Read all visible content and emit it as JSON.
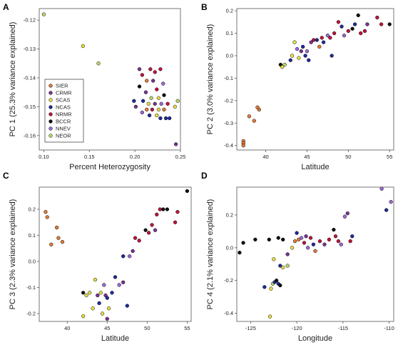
{
  "colors": {
    "SIER": "#e07b39",
    "CRMR": "#7b3294",
    "SCAS": "#e8dc4a",
    "NCAS": "#1f2a9c",
    "NRMR": "#c0143c",
    "BCCR": "#111111",
    "NNEV": "#9b6bd6",
    "NEOR": "#b7d96a"
  },
  "legend": [
    "SIER",
    "CRMR",
    "SCAS",
    "NCAS",
    "NRMR",
    "BCCR",
    "NNEV",
    "NEOR"
  ],
  "chart_data": [
    {
      "panel": "A",
      "type": "scatter",
      "xlabel": "Percent Heterozygosity",
      "ylabel": "PC 1 (25.3% variance explained)",
      "xlim": [
        0.095,
        0.25
      ],
      "ylim": [
        -0.165,
        -0.116
      ],
      "xticks": [
        0.1,
        0.15,
        0.2,
        0.25
      ],
      "xtick_labels": [
        "0.10",
        "0.15",
        "0.20",
        "0.25"
      ],
      "yticks": [
        -0.12,
        -0.13,
        -0.14,
        -0.15,
        -0.16
      ],
      "ytick_labels": [
        "-0.12",
        "-0.13",
        "-0.14",
        "-0.15",
        "-0.16"
      ],
      "legend_position": "bottom-left",
      "points": [
        {
          "x": 0.1,
          "y": -0.118,
          "g": "NEOR"
        },
        {
          "x": 0.143,
          "y": -0.129,
          "g": "SCAS"
        },
        {
          "x": 0.16,
          "y": -0.135,
          "g": "NEOR"
        },
        {
          "x": 0.205,
          "y": -0.137,
          "g": "CRMR"
        },
        {
          "x": 0.208,
          "y": -0.139,
          "g": "NRMR"
        },
        {
          "x": 0.217,
          "y": -0.137,
          "g": "NRMR"
        },
        {
          "x": 0.222,
          "y": -0.138,
          "g": "NRMR"
        },
        {
          "x": 0.228,
          "y": -0.137,
          "g": "NRMR"
        },
        {
          "x": 0.213,
          "y": -0.141,
          "g": "SIER"
        },
        {
          "x": 0.22,
          "y": -0.141,
          "g": "CRMR"
        },
        {
          "x": 0.231,
          "y": -0.142,
          "g": "NNEV"
        },
        {
          "x": 0.205,
          "y": -0.143,
          "g": "BCCR"
        },
        {
          "x": 0.224,
          "y": -0.144,
          "g": "NRMR"
        },
        {
          "x": 0.212,
          "y": -0.145,
          "g": "CRMR"
        },
        {
          "x": 0.232,
          "y": -0.146,
          "g": "BCCR"
        },
        {
          "x": 0.218,
          "y": -0.147,
          "g": "NEOR"
        },
        {
          "x": 0.226,
          "y": -0.147,
          "g": "SCAS"
        },
        {
          "x": 0.199,
          "y": -0.148,
          "g": "NCAS"
        },
        {
          "x": 0.209,
          "y": -0.148,
          "g": "NCAS"
        },
        {
          "x": 0.215,
          "y": -0.149,
          "g": "SCAS"
        },
        {
          "x": 0.222,
          "y": -0.149,
          "g": "CRMR"
        },
        {
          "x": 0.229,
          "y": -0.149,
          "g": "NNEV"
        },
        {
          "x": 0.236,
          "y": -0.149,
          "g": "NRMR"
        },
        {
          "x": 0.247,
          "y": -0.148,
          "g": "NEOR"
        },
        {
          "x": 0.244,
          "y": -0.15,
          "g": "SCAS"
        },
        {
          "x": 0.201,
          "y": -0.15,
          "g": "CRMR"
        },
        {
          "x": 0.213,
          "y": -0.151,
          "g": "SIER"
        },
        {
          "x": 0.219,
          "y": -0.151,
          "g": "NRMR"
        },
        {
          "x": 0.226,
          "y": -0.151,
          "g": "SCAS"
        },
        {
          "x": 0.232,
          "y": -0.151,
          "g": "SIER"
        },
        {
          "x": 0.208,
          "y": -0.152,
          "g": "NNEV"
        },
        {
          "x": 0.216,
          "y": -0.153,
          "g": "NCAS"
        },
        {
          "x": 0.224,
          "y": -0.153,
          "g": "SCAS"
        },
        {
          "x": 0.228,
          "y": -0.154,
          "g": "NCAS"
        },
        {
          "x": 0.234,
          "y": -0.154,
          "g": "NCAS"
        },
        {
          "x": 0.238,
          "y": -0.154,
          "g": "NCAS"
        },
        {
          "x": 0.245,
          "y": -0.163,
          "g": "CRMR"
        }
      ]
    },
    {
      "panel": "B",
      "type": "scatter",
      "xlabel": "Latitude",
      "ylabel": "PC 2 (3.0% variance explained)",
      "xlim": [
        36.5,
        55.5
      ],
      "ylim": [
        -0.42,
        0.21
      ],
      "xticks": [
        40,
        45,
        50,
        55
      ],
      "xtick_labels": [
        "40",
        "45",
        "50",
        "55"
      ],
      "yticks": [
        -0.4,
        -0.3,
        -0.2,
        -0.1,
        0.0,
        0.1,
        0.2
      ],
      "ytick_labels": [
        "-0.4",
        "-0.3",
        "-0.2",
        "-0.1",
        "0.0",
        "0.1",
        "0.2"
      ],
      "points": [
        {
          "x": 37.3,
          "y": -0.38,
          "g": "SIER"
        },
        {
          "x": 37.3,
          "y": -0.39,
          "g": "SIER"
        },
        {
          "x": 37.3,
          "y": -0.4,
          "g": "SIER"
        },
        {
          "x": 38.0,
          "y": -0.27,
          "g": "SIER"
        },
        {
          "x": 38.6,
          "y": -0.29,
          "g": "SIER"
        },
        {
          "x": 39.2,
          "y": -0.24,
          "g": "SIER"
        },
        {
          "x": 39.0,
          "y": -0.23,
          "g": "SIER"
        },
        {
          "x": 41.8,
          "y": -0.04,
          "g": "BCCR"
        },
        {
          "x": 42.0,
          "y": -0.05,
          "g": "SCAS"
        },
        {
          "x": 42.3,
          "y": -0.04,
          "g": "NEOR"
        },
        {
          "x": 43.0,
          "y": -0.02,
          "g": "NCAS"
        },
        {
          "x": 43.2,
          "y": 0.0,
          "g": "SCAS"
        },
        {
          "x": 43.5,
          "y": 0.06,
          "g": "SCAS"
        },
        {
          "x": 43.8,
          "y": 0.03,
          "g": "NNEV"
        },
        {
          "x": 44.0,
          "y": -0.01,
          "g": "SCAS"
        },
        {
          "x": 44.3,
          "y": 0.02,
          "g": "CRMR"
        },
        {
          "x": 44.5,
          "y": 0.04,
          "g": "NCAS"
        },
        {
          "x": 44.8,
          "y": 0.0,
          "g": "NCAS"
        },
        {
          "x": 45.0,
          "y": 0.02,
          "g": "NNEV"
        },
        {
          "x": 45.2,
          "y": -0.02,
          "g": "NCAS"
        },
        {
          "x": 45.5,
          "y": 0.06,
          "g": "CRMR"
        },
        {
          "x": 45.8,
          "y": 0.07,
          "g": "NRMR"
        },
        {
          "x": 46.2,
          "y": 0.07,
          "g": "NCAS"
        },
        {
          "x": 46.5,
          "y": 0.04,
          "g": "SIER"
        },
        {
          "x": 46.8,
          "y": 0.08,
          "g": "NRMR"
        },
        {
          "x": 47.0,
          "y": 0.06,
          "g": "NCAS"
        },
        {
          "x": 47.5,
          "y": 0.09,
          "g": "NNEV"
        },
        {
          "x": 47.8,
          "y": 0.08,
          "g": "NRMR"
        },
        {
          "x": 48.0,
          "y": 0.0,
          "g": "NCAS"
        },
        {
          "x": 48.3,
          "y": 0.1,
          "g": "NRMR"
        },
        {
          "x": 48.8,
          "y": 0.15,
          "g": "NRMR"
        },
        {
          "x": 49.2,
          "y": 0.13,
          "g": "NCAS"
        },
        {
          "x": 49.5,
          "y": 0.09,
          "g": "NNEV"
        },
        {
          "x": 50.0,
          "y": 0.11,
          "g": "NRMR"
        },
        {
          "x": 50.5,
          "y": 0.12,
          "g": "BCCR"
        },
        {
          "x": 50.8,
          "y": 0.14,
          "g": "NCAS"
        },
        {
          "x": 51.2,
          "y": 0.18,
          "g": "BCCR"
        },
        {
          "x": 51.5,
          "y": 0.1,
          "g": "NRMR"
        },
        {
          "x": 52.0,
          "y": 0.11,
          "g": "NRMR"
        },
        {
          "x": 52.3,
          "y": 0.14,
          "g": "CRMR"
        },
        {
          "x": 53.5,
          "y": 0.17,
          "g": "NRMR"
        },
        {
          "x": 54.0,
          "y": 0.14,
          "g": "NRMR"
        },
        {
          "x": 55.0,
          "y": 0.14,
          "g": "BCCR"
        }
      ]
    },
    {
      "panel": "C",
      "type": "scatter",
      "xlabel": "Latitude",
      "ylabel": "PC 3 (2.3% variance explained)",
      "xlim": [
        36.5,
        55.5
      ],
      "ylim": [
        -0.23,
        0.285
      ],
      "xticks": [
        40,
        45,
        50,
        55
      ],
      "xtick_labels": [
        "40",
        "45",
        "50",
        "55"
      ],
      "yticks": [
        -0.2,
        -0.1,
        0.0,
        0.1,
        0.2
      ],
      "ytick_labels": [
        "-0.2",
        "-0.1",
        "0.0",
        "0.1",
        "0.2"
      ],
      "points": [
        {
          "x": 37.3,
          "y": 0.19,
          "g": "SIER"
        },
        {
          "x": 37.5,
          "y": 0.17,
          "g": "SIER"
        },
        {
          "x": 38.0,
          "y": 0.065,
          "g": "SIER"
        },
        {
          "x": 38.7,
          "y": 0.13,
          "g": "SIER"
        },
        {
          "x": 38.9,
          "y": 0.09,
          "g": "SIER"
        },
        {
          "x": 39.4,
          "y": 0.075,
          "g": "SIER"
        },
        {
          "x": 42.0,
          "y": -0.21,
          "g": "SCAS"
        },
        {
          "x": 42.0,
          "y": -0.12,
          "g": "BCCR"
        },
        {
          "x": 42.4,
          "y": -0.13,
          "g": "SCAS"
        },
        {
          "x": 42.8,
          "y": -0.12,
          "g": "SCAS"
        },
        {
          "x": 43.2,
          "y": -0.18,
          "g": "SCAS"
        },
        {
          "x": 43.5,
          "y": -0.07,
          "g": "SCAS"
        },
        {
          "x": 43.8,
          "y": -0.13,
          "g": "CRMR"
        },
        {
          "x": 44.0,
          "y": -0.16,
          "g": "NCAS"
        },
        {
          "x": 44.2,
          "y": -0.12,
          "g": "SCAS"
        },
        {
          "x": 44.4,
          "y": -0.2,
          "g": "SCAS"
        },
        {
          "x": 44.6,
          "y": -0.09,
          "g": "NNEV"
        },
        {
          "x": 44.8,
          "y": -0.13,
          "g": "CRMR"
        },
        {
          "x": 45.0,
          "y": -0.22,
          "g": "CRMR"
        },
        {
          "x": 45.0,
          "y": -0.14,
          "g": "NCAS"
        },
        {
          "x": 45.2,
          "y": -0.18,
          "g": "SCAS"
        },
        {
          "x": 45.6,
          "y": -0.12,
          "g": "NCAS"
        },
        {
          "x": 46.0,
          "y": -0.06,
          "g": "NCAS"
        },
        {
          "x": 46.5,
          "y": -0.09,
          "g": "NNEV"
        },
        {
          "x": 47.0,
          "y": -0.08,
          "g": "CRMR"
        },
        {
          "x": 47.5,
          "y": -0.17,
          "g": "NCAS"
        },
        {
          "x": 47.0,
          "y": 0.02,
          "g": "NCAS"
        },
        {
          "x": 47.8,
          "y": 0.02,
          "g": "NNEV"
        },
        {
          "x": 48.2,
          "y": 0.04,
          "g": "CRMR"
        },
        {
          "x": 48.5,
          "y": 0.09,
          "g": "NRMR"
        },
        {
          "x": 49.0,
          "y": 0.08,
          "g": "NRMR"
        },
        {
          "x": 49.8,
          "y": 0.12,
          "g": "BCCR"
        },
        {
          "x": 50.2,
          "y": 0.11,
          "g": "NRMR"
        },
        {
          "x": 50.6,
          "y": 0.14,
          "g": "NRMR"
        },
        {
          "x": 51.0,
          "y": 0.12,
          "g": "CRMR"
        },
        {
          "x": 51.2,
          "y": 0.18,
          "g": "NRMR"
        },
        {
          "x": 51.6,
          "y": 0.2,
          "g": "NRMR"
        },
        {
          "x": 52.0,
          "y": 0.2,
          "g": "BCCR"
        },
        {
          "x": 52.5,
          "y": 0.2,
          "g": "BCCR"
        },
        {
          "x": 53.5,
          "y": 0.15,
          "g": "NRMR"
        },
        {
          "x": 53.8,
          "y": 0.19,
          "g": "NRMR"
        },
        {
          "x": 55.0,
          "y": 0.27,
          "g": "BCCR"
        }
      ]
    },
    {
      "panel": "D",
      "type": "scatter",
      "xlabel": "Longitude",
      "ylabel": "PC 4 (2.1% variance explained)",
      "xlim": [
        -126.5,
        -109.5
      ],
      "ylim": [
        -0.45,
        0.37
      ],
      "xticks": [
        -125,
        -120,
        -115,
        -110
      ],
      "xtick_labels": [
        "-125",
        "-120",
        "-115",
        "-110"
      ],
      "yticks": [
        -0.4,
        -0.2,
        0.0,
        0.2
      ],
      "ytick_labels": [
        "-0.4",
        "-0.2",
        "0.0",
        "0.2"
      ],
      "points": [
        {
          "x": -126.2,
          "y": -0.03,
          "g": "BCCR"
        },
        {
          "x": -125.8,
          "y": 0.03,
          "g": "BCCR"
        },
        {
          "x": -124.5,
          "y": 0.05,
          "g": "BCCR"
        },
        {
          "x": -123.0,
          "y": 0.05,
          "g": "BCCR"
        },
        {
          "x": -122.0,
          "y": 0.06,
          "g": "BCCR"
        },
        {
          "x": -121.5,
          "y": 0.05,
          "g": "BCCR"
        },
        {
          "x": -122.5,
          "y": -0.07,
          "g": "SCAS"
        },
        {
          "x": -121.8,
          "y": -0.11,
          "g": "NCAS"
        },
        {
          "x": -121.5,
          "y": -0.12,
          "g": "SCAS"
        },
        {
          "x": -121.0,
          "y": -0.11,
          "g": "NEOR"
        },
        {
          "x": -121.0,
          "y": -0.04,
          "g": "CRMR"
        },
        {
          "x": -120.5,
          "y": 0.0,
          "g": "SCAS"
        },
        {
          "x": -120.2,
          "y": 0.04,
          "g": "SIER"
        },
        {
          "x": -120.0,
          "y": 0.09,
          "g": "NCAS"
        },
        {
          "x": -119.8,
          "y": 0.05,
          "g": "SIER"
        },
        {
          "x": -119.5,
          "y": 0.06,
          "g": "NNEV"
        },
        {
          "x": -119.2,
          "y": 0.03,
          "g": "NRMR"
        },
        {
          "x": -119.0,
          "y": 0.07,
          "g": "CRMR"
        },
        {
          "x": -118.8,
          "y": 0.0,
          "g": "NNEV"
        },
        {
          "x": -118.5,
          "y": 0.06,
          "g": "NRMR"
        },
        {
          "x": -118.2,
          "y": 0.02,
          "g": "NCAS"
        },
        {
          "x": -118.0,
          "y": -0.02,
          "g": "SIER"
        },
        {
          "x": -117.5,
          "y": 0.04,
          "g": "NRMR"
        },
        {
          "x": -117.0,
          "y": 0.02,
          "g": "CRMR"
        },
        {
          "x": -116.5,
          "y": 0.05,
          "g": "NRMR"
        },
        {
          "x": -116.0,
          "y": 0.11,
          "g": "BCCR"
        },
        {
          "x": -115.8,
          "y": 0.07,
          "g": "NRMR"
        },
        {
          "x": -115.5,
          "y": 0.04,
          "g": "NRMR"
        },
        {
          "x": -115.2,
          "y": 0.02,
          "g": "NNEV"
        },
        {
          "x": -114.8,
          "y": 0.19,
          "g": "NNEV"
        },
        {
          "x": -114.5,
          "y": 0.21,
          "g": "CRMR"
        },
        {
          "x": -114.2,
          "y": 0.04,
          "g": "NRMR"
        },
        {
          "x": -114.0,
          "y": 0.07,
          "g": "NCAS"
        },
        {
          "x": -110.8,
          "y": 0.36,
          "g": "NNEV"
        },
        {
          "x": -110.3,
          "y": 0.23,
          "g": "NCAS"
        },
        {
          "x": -109.8,
          "y": 0.28,
          "g": "NNEV"
        },
        {
          "x": -123.5,
          "y": -0.24,
          "g": "NCAS"
        },
        {
          "x": -122.8,
          "y": -0.25,
          "g": "SCAS"
        },
        {
          "x": -122.6,
          "y": -0.22,
          "g": "NEOR"
        },
        {
          "x": -122.4,
          "y": -0.21,
          "g": "NCAS"
        },
        {
          "x": -122.2,
          "y": -0.2,
          "g": "BCCR"
        },
        {
          "x": -122.0,
          "y": -0.22,
          "g": "NCAS"
        },
        {
          "x": -121.8,
          "y": -0.23,
          "g": "BCCR"
        },
        {
          "x": -122.9,
          "y": -0.42,
          "g": "SCAS"
        }
      ]
    }
  ]
}
